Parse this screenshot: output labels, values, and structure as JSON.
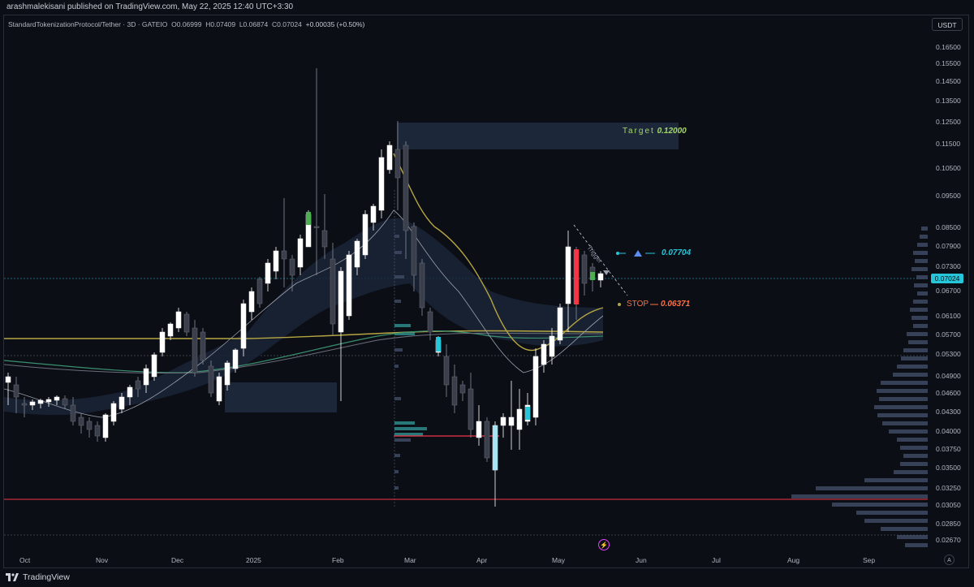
{
  "header": {
    "published": "arashmalekisani published on TradingView.com, May 22, 2025 12:40 UTC+3:30"
  },
  "legend": {
    "symbol": "StandardTokenizationProtocol/Tether · 3D · GATEIO",
    "open": "O0.06999",
    "high": "H0.07409",
    "low": "L0.06874",
    "close": "C0.07024",
    "change": "+0.00035 (+0.50%)"
  },
  "currency": "USDT",
  "current_price": "0.07024",
  "price_axis": [
    "0.16500",
    "0.15500",
    "0.14500",
    "0.13500",
    "0.12500",
    "0.11500",
    "0.10500",
    "0.09500",
    "0.08500",
    "0.07900",
    "0.07300",
    "0.06700",
    "0.06100",
    "0.05700",
    "0.05300",
    "0.04900",
    "0.04600",
    "0.04300",
    "0.04000",
    "0.03750",
    "0.03500",
    "0.03250",
    "0.03050",
    "0.02850",
    "0.02670"
  ],
  "time_axis": [
    "Oct",
    "Nov",
    "Dec",
    "2025",
    "Feb",
    "Mar",
    "Apr",
    "May",
    "Jun",
    "Jul",
    "Aug",
    "Sep"
  ],
  "annotations": {
    "target_label": "Target",
    "target_value": "0.12000",
    "trigger_value": "0.07704",
    "trigger_text": "Trigger",
    "stop_label": "STOP",
    "stop_value": "0.06371"
  },
  "colors": {
    "background": "#0c0e16",
    "candle_up": "#ffffff",
    "candle_down": "#3b3f4b",
    "accent_green": "#4caf50",
    "accent_cyan": "#26c6da",
    "accent_red": "#f23645",
    "ma_gold": "#b5a642",
    "target_green": "#a5d66a",
    "trigger_blue": "#26c6da",
    "stop_orange": "#ff7043",
    "zone": "#1e2a3d"
  },
  "footer": {
    "brand": "TradingView"
  }
}
